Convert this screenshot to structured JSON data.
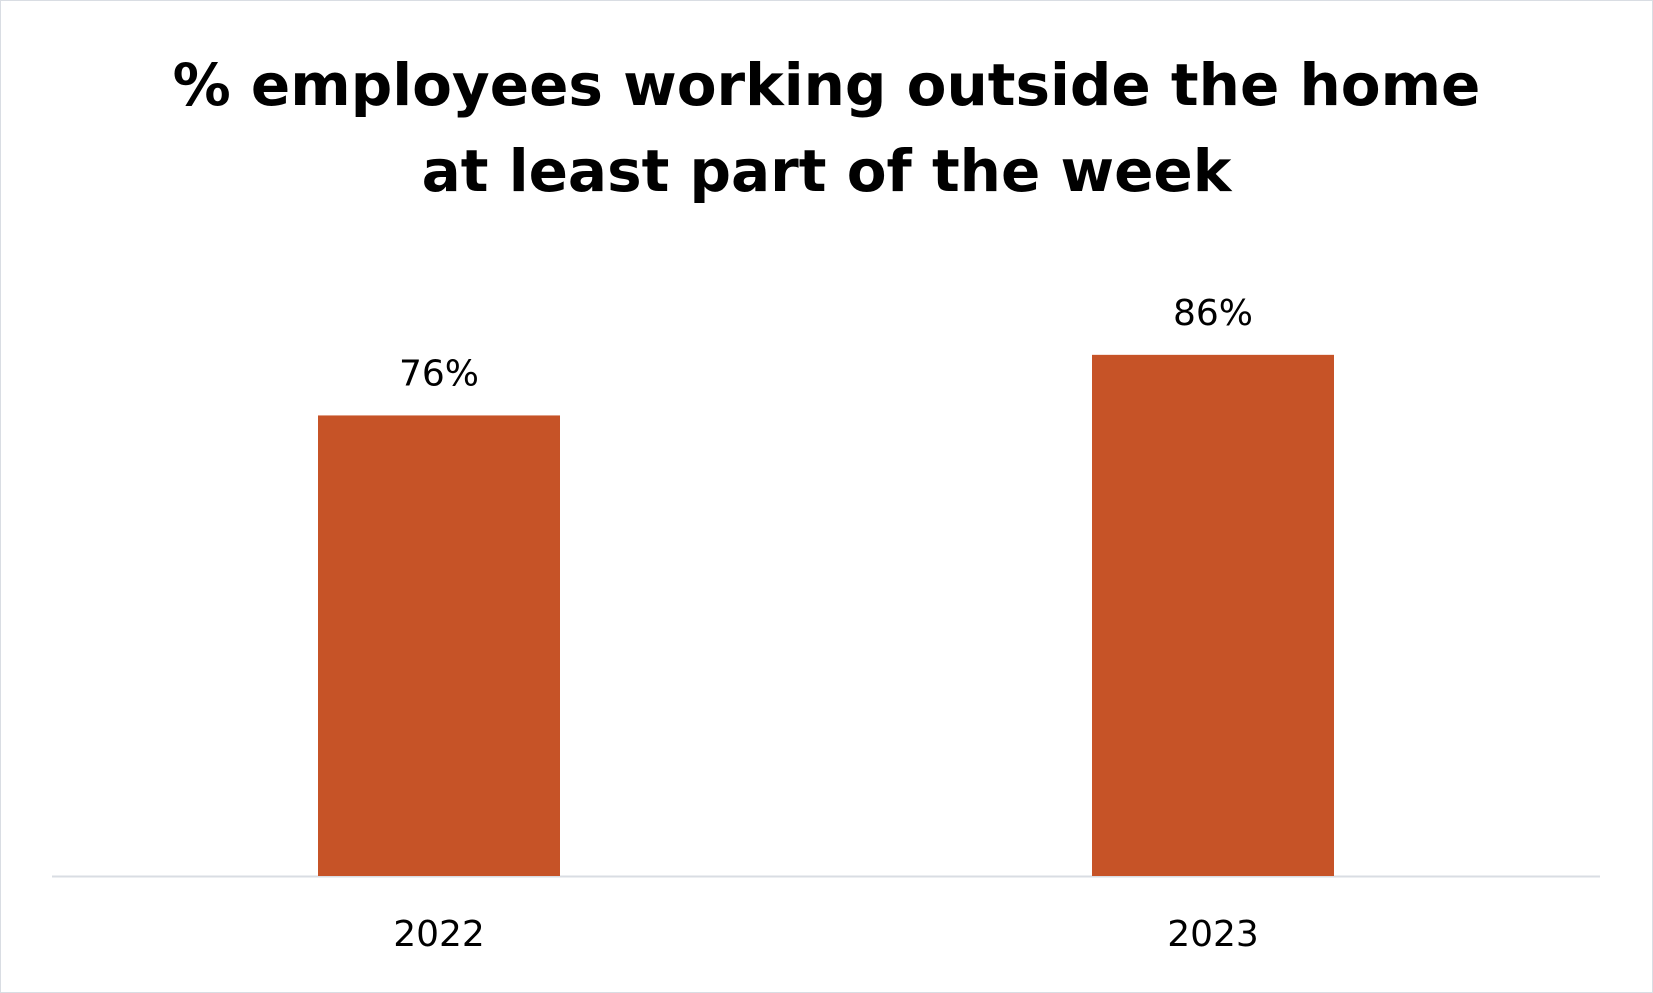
{
  "chart_data": {
    "type": "bar",
    "title_lines": [
      "% employees working outside the home",
      "at least part of the week"
    ],
    "categories": [
      "2022",
      "2023"
    ],
    "values": [
      76,
      86
    ],
    "value_labels": [
      "76%",
      "86%"
    ],
    "ylim": [
      0,
      100
    ],
    "grid": false,
    "legend": "none",
    "xlabel": "",
    "ylabel": "",
    "colors": {
      "bar": "#C65327",
      "axis": "#D9DDE3",
      "text": "#000000"
    }
  }
}
